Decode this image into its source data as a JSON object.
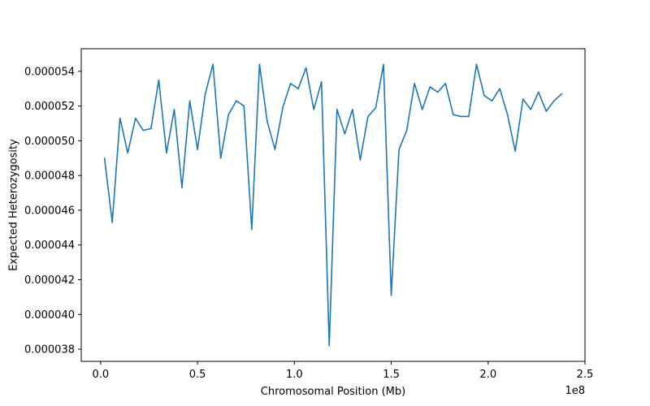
{
  "chart_data": {
    "type": "line",
    "title": "",
    "xlabel": "Chromosomal Position (Mb)",
    "ylabel": "Expected Heterozygosity",
    "x_offset_label": "1e8",
    "xlim": [
      -0.1,
      2.5
    ],
    "ylim": [
      3.73e-05,
      5.53e-05
    ],
    "x_ticks": [
      0.0,
      0.5,
      1.0,
      1.5,
      2.0,
      2.5
    ],
    "x_tick_labels": [
      "0.0",
      "0.5",
      "1.0",
      "1.5",
      "2.0",
      "2.5"
    ],
    "y_ticks": [
      3.8e-05,
      4e-05,
      4.2e-05,
      4.4e-05,
      4.6e-05,
      4.8e-05,
      5e-05,
      5.2e-05,
      5.4e-05
    ],
    "y_tick_labels": [
      "0.000038",
      "0.000040",
      "0.000042",
      "0.000044",
      "0.000046",
      "0.000048",
      "0.000050",
      "0.000052",
      "0.000054"
    ],
    "line_color": "#1f77b4",
    "grid": false,
    "series": [
      {
        "x": [
          0.02,
          0.06,
          0.1,
          0.14,
          0.18,
          0.22,
          0.26,
          0.3,
          0.34,
          0.38,
          0.42,
          0.46,
          0.5,
          0.54,
          0.58,
          0.62,
          0.66,
          0.7,
          0.74,
          0.78,
          0.82,
          0.86,
          0.9,
          0.94,
          0.98,
          1.02,
          1.06,
          1.1,
          1.14,
          1.18,
          1.22,
          1.26,
          1.3,
          1.34,
          1.38,
          1.42,
          1.46,
          1.5,
          1.54,
          1.58,
          1.62,
          1.66,
          1.7,
          1.74,
          1.78,
          1.82,
          1.86,
          1.9,
          1.94,
          1.98,
          2.02,
          2.06,
          2.1,
          2.14,
          2.18,
          2.22,
          2.26,
          2.3,
          2.34,
          2.38
        ],
        "values": [
          4.9e-05,
          4.53e-05,
          5.13e-05,
          4.93e-05,
          5.13e-05,
          5.06e-05,
          5.07e-05,
          5.35e-05,
          4.93e-05,
          5.18e-05,
          4.73e-05,
          5.23e-05,
          4.95e-05,
          5.27e-05,
          5.44e-05,
          4.9e-05,
          5.15e-05,
          5.23e-05,
          5.2e-05,
          4.49e-05,
          5.44e-05,
          5.11e-05,
          4.95e-05,
          5.19e-05,
          5.33e-05,
          5.3e-05,
          5.42e-05,
          5.18e-05,
          5.34e-05,
          3.82e-05,
          5.18e-05,
          5.04e-05,
          5.18e-05,
          4.89e-05,
          5.14e-05,
          5.19e-05,
          5.44e-05,
          4.11e-05,
          4.95e-05,
          5.06e-05,
          5.33e-05,
          5.18e-05,
          5.31e-05,
          5.28e-05,
          5.33e-05,
          5.15e-05,
          5.14e-05,
          5.14e-05,
          5.44e-05,
          5.26e-05,
          5.23e-05,
          5.3e-05,
          5.15e-05,
          4.94e-05,
          5.24e-05,
          5.18e-05,
          5.28e-05,
          5.17e-05,
          5.23e-05,
          5.27e-05
        ]
      }
    ]
  }
}
